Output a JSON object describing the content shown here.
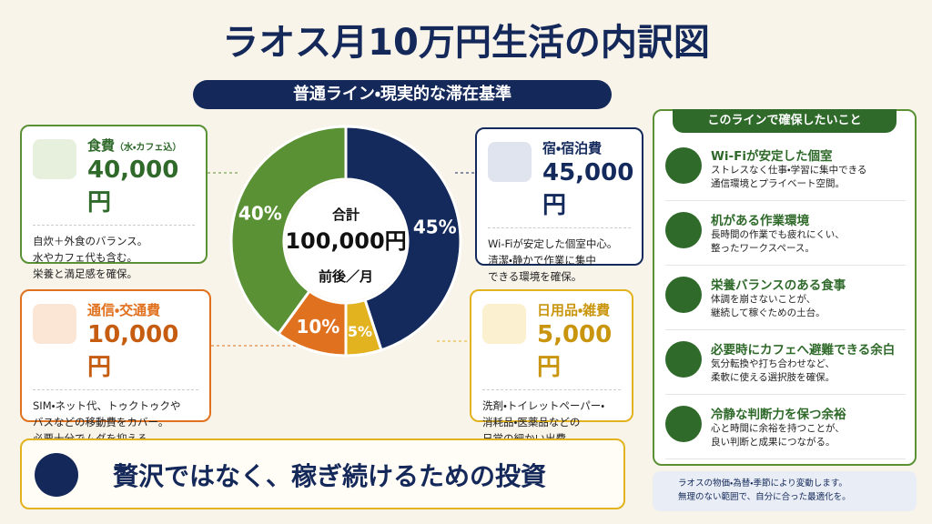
{
  "header": {
    "title": "ラオス月10万円生活の内訳図",
    "subtitle": "普通ライン・現実的な滞在基準"
  },
  "chart_data": {
    "type": "pie",
    "donut": true,
    "categories": [
      "宿・宿泊費",
      "日用品・雑費",
      "通信・交通費",
      "食費"
    ],
    "values": [
      45,
      5,
      10,
      40
    ],
    "value_labels": [
      "45%",
      "5%",
      "10%",
      "40%"
    ],
    "colors": [
      "#142a5c",
      "#e3b21f",
      "#e0711e",
      "#5a9134"
    ],
    "center": [
      "合計",
      "100,000円",
      "前後／月"
    ]
  },
  "cards": {
    "lodging": {
      "amount": "45,000円",
      "lines": [
        "Wi-Fiが安定した個室中心。",
        "清潔・静かで作業に集中",
        "できる環境を確保。"
      ]
    },
    "goods": {
      "amount": "5,000円",
      "lines": [
        "洗剤・トイレットペーパー・",
        "消耗品・医薬品などの",
        "日常の細かい出費。"
      ]
    },
    "comm": {
      "amount": "10,000円",
      "lines": [
        "SIM・ネット代、トゥクトゥクや",
        "バスなどの移動費をカバー。",
        "必要十分でムダを抑える。"
      ]
    },
    "food": {
      "note": "（水・カフェ込）",
      "amount": "40,000円",
      "lines": [
        "自炊＋外食のバランス。",
        "水やカフェ代も含む。",
        "栄養と満足感を確保。"
      ]
    }
  },
  "panel": {
    "title": "このラインで確保したいこと",
    "items": [
      {
        "title": "Wi-Fiが安定した個室",
        "lines": [
          "ストレスなく仕事・学習に集中できる",
          "通信環境とプライベート空間。"
        ]
      },
      {
        "title": "机がある作業環境",
        "lines": [
          "長時間の作業でも疲れにくい、",
          "整ったワークスペース。"
        ]
      },
      {
        "title": "栄養バランスのある食事",
        "lines": [
          "体調を崩さないことが、",
          "継続して稼ぐための土台。"
        ]
      },
      {
        "title": "必要時にカフェへ避難できる余白",
        "lines": [
          "気分転換や打ち合わせなど、",
          "柔軟に使える選択肢を確保。"
        ]
      },
      {
        "title": "冷静な判断力を保つ余裕",
        "lines": [
          "心と時間に余裕を持つことが、",
          "良い判断と成果につながる。"
        ]
      }
    ]
  },
  "banner": {
    "text": "贅沢ではなく、稼ぎ続けるための投資"
  },
  "note": {
    "lines": [
      "ラオスの物価・為替・季節により変動します。",
      "無理のない範囲で、自分に合った最適化を。"
    ]
  }
}
